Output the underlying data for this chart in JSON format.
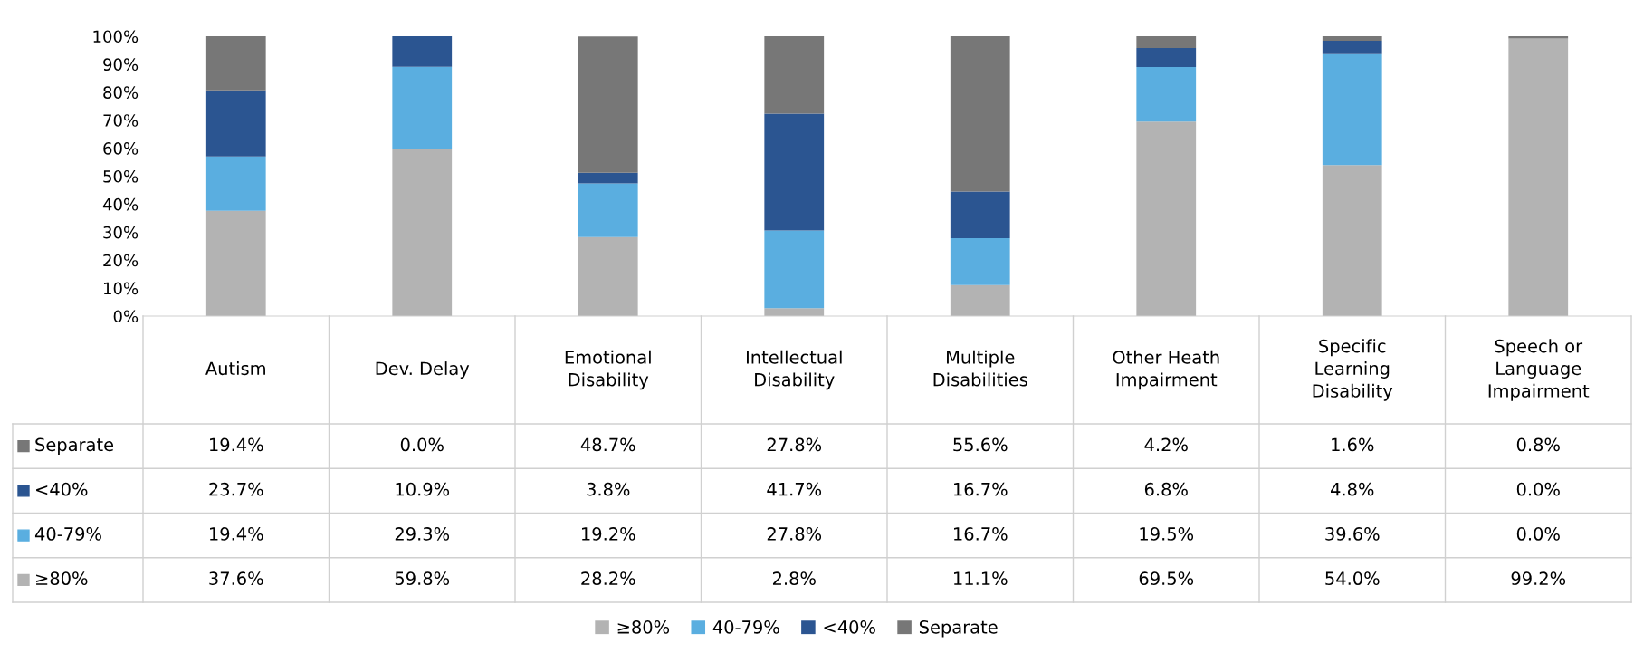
{
  "chart_data": {
    "type": "bar",
    "stacked": true,
    "legend": "bottom",
    "grid": false,
    "tick_labels": "y",
    "categories": [
      "Autism",
      "Dev. Delay",
      "Emotional\nDisability",
      "Intellectual\nDisability",
      "Multiple\nDisabilities",
      "Other Heath\nImpairment",
      "Specific\nLearning\nDisability",
      "Speech or\nLanguage\nImpairment"
    ],
    "ylim": [
      0,
      100
    ],
    "yticks": [
      {
        "value": 0,
        "label": "0%"
      },
      {
        "value": 10,
        "label": "10%"
      },
      {
        "value": 20,
        "label": "20%"
      },
      {
        "value": 30,
        "label": "30%"
      },
      {
        "value": 40,
        "label": "40%"
      },
      {
        "value": 50,
        "label": "50%"
      },
      {
        "value": 60,
        "label": "60%"
      },
      {
        "value": 70,
        "label": "70%"
      },
      {
        "value": 80,
        "label": "80%"
      },
      {
        "value": 90,
        "label": "90%"
      },
      {
        "value": 100,
        "label": "100%"
      }
    ],
    "series": [
      {
        "name": "≥80%",
        "color": "#b3b3b3",
        "values": [
          37.6,
          59.8,
          28.2,
          2.8,
          11.1,
          69.5,
          54.0,
          99.2
        ],
        "value_labels": [
          "37.6%",
          "59.8%",
          "28.2%",
          "2.8%",
          "11.1%",
          "69.5%",
          "54.0%",
          "99.2%"
        ]
      },
      {
        "name": "40-79%",
        "color": "#5aaee0",
        "values": [
          19.4,
          29.3,
          19.2,
          27.8,
          16.7,
          19.5,
          39.6,
          0.0
        ],
        "value_labels": [
          "19.4%",
          "29.3%",
          "19.2%",
          "27.8%",
          "16.7%",
          "19.5%",
          "39.6%",
          "0.0%"
        ]
      },
      {
        "name": "<40%",
        "color": "#2b5591",
        "values": [
          23.7,
          10.9,
          3.8,
          41.7,
          16.7,
          6.8,
          4.8,
          0.0
        ],
        "value_labels": [
          "23.7%",
          "10.9%",
          "3.8%",
          "41.7%",
          "16.7%",
          "6.8%",
          "4.8%",
          "0.0%"
        ]
      },
      {
        "name": "Separate",
        "color": "#777777",
        "values": [
          19.4,
          0.0,
          48.7,
          27.8,
          55.6,
          4.2,
          1.6,
          0.8
        ],
        "value_labels": [
          "19.4%",
          "0.0%",
          "48.7%",
          "27.8%",
          "55.6%",
          "4.2%",
          "1.6%",
          "0.8%"
        ]
      }
    ]
  }
}
